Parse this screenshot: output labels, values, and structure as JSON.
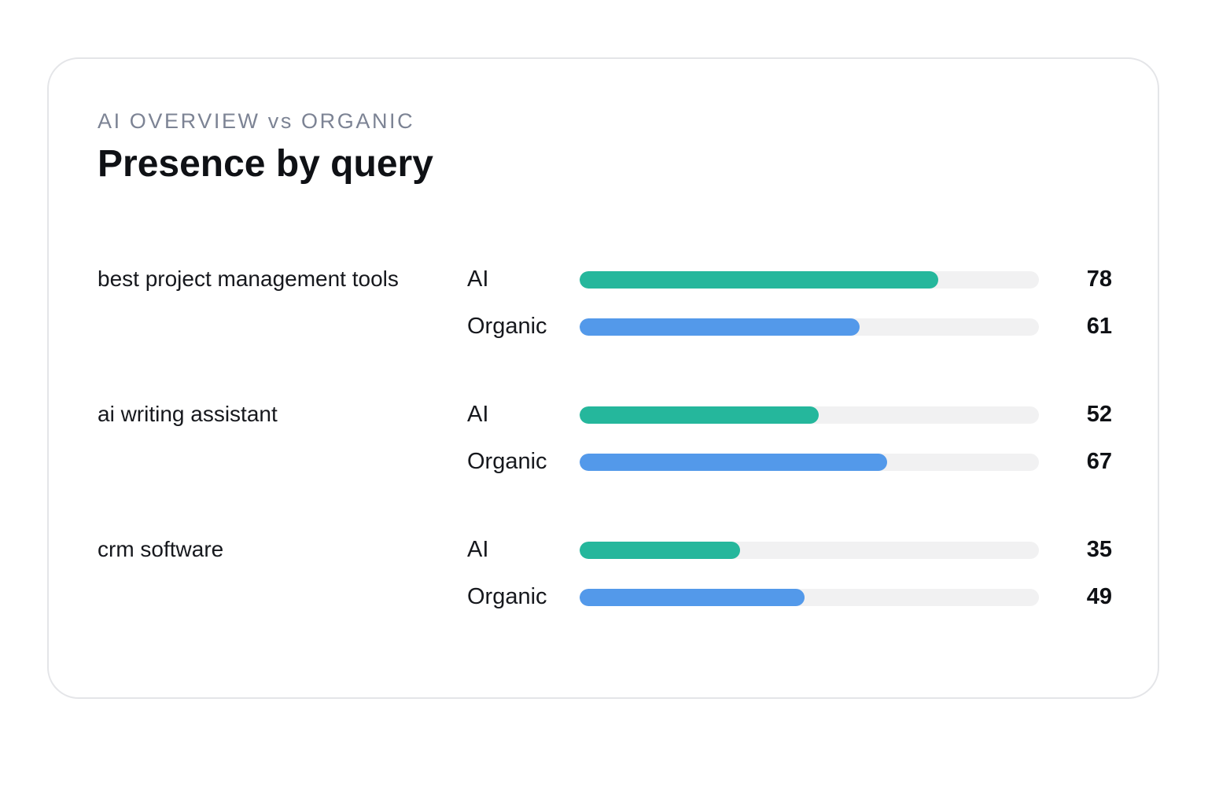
{
  "header": {
    "eyebrow": "AI OVERVIEW vs ORGANIC",
    "title": "Presence by query"
  },
  "colors": {
    "ai": "#25b79c",
    "organic": "#5399ea",
    "track": "#f1f1f2"
  },
  "chart_data": {
    "type": "bar",
    "orientation": "horizontal",
    "title": "Presence by query",
    "subtitle": "AI OVERVIEW vs ORGANIC",
    "xlim": [
      0,
      100
    ],
    "grid": false,
    "categories": [
      "best project management tools",
      "ai writing assistant",
      "crm software"
    ],
    "series": [
      {
        "name": "AI",
        "values": [
          78,
          52,
          35
        ]
      },
      {
        "name": "Organic",
        "values": [
          61,
          67,
          49
        ]
      }
    ]
  }
}
